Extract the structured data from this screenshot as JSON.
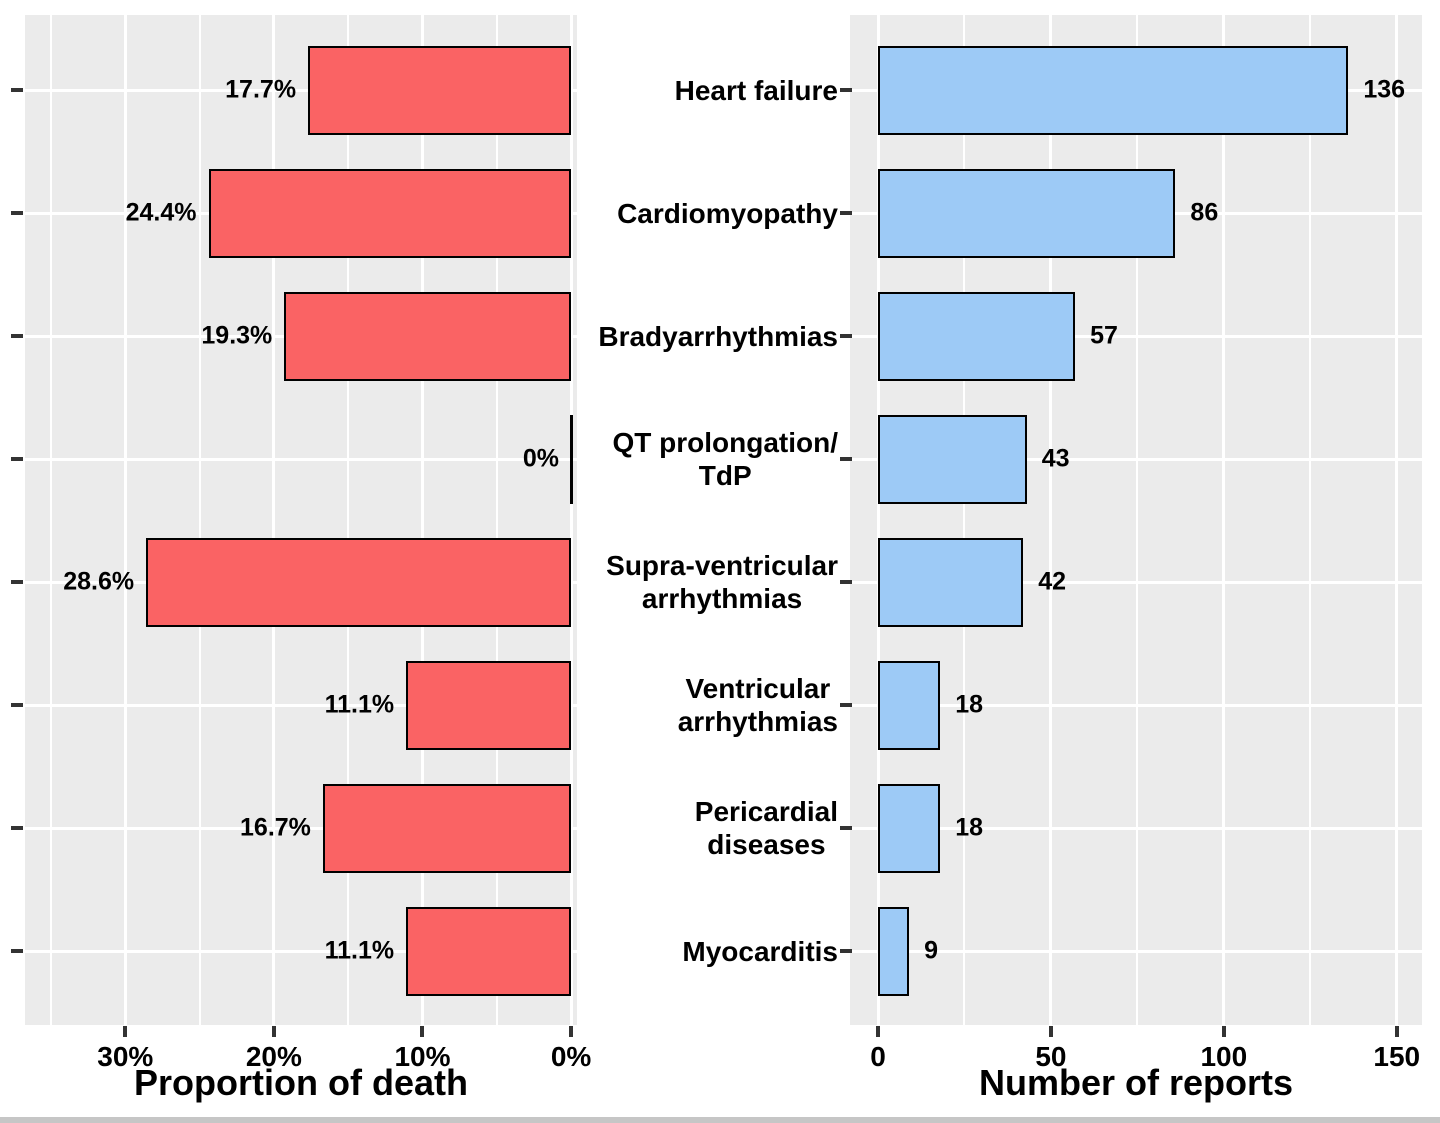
{
  "chart_data": {
    "type": "bar",
    "orientation": "horizontal",
    "layout": "two back-to-back horizontal bar panels sharing a centered category axis",
    "categories": [
      "Heart failure",
      "Cardiomyopathy",
      "Bradyarrhythmias",
      "QT prolongation/\nTdP",
      "Supra-ventricular\narrhythmias",
      "Ventricular\narrhythmias",
      "Pericardial\ndiseases",
      "Myocarditis"
    ],
    "panels": [
      {
        "name": "proportion-of-death",
        "xlabel": "Proportion of death",
        "bar_color": "#FA6364",
        "values": [
          17.7,
          24.4,
          19.3,
          0,
          28.6,
          11.1,
          16.7,
          11.1
        ],
        "value_labels": [
          "17.7%",
          "24.4%",
          "19.3%",
          "0%",
          "28.6%",
          "11.1%",
          "16.7%",
          "11.1%"
        ],
        "value_label_side": "left",
        "x_tick_labels": [
          "30%",
          "20%",
          "10%",
          "0%"
        ],
        "x_tick_values": [
          30,
          20,
          10,
          0
        ],
        "x_minor_tick_values": [
          35,
          25,
          15,
          5
        ],
        "x_axis_reversed": true,
        "x_range": [
          36.75,
          -0.4
        ]
      },
      {
        "name": "number-of-reports",
        "xlabel": "Number of reports",
        "bar_color": "#9DCAF6",
        "values": [
          136,
          86,
          57,
          43,
          42,
          18,
          18,
          9
        ],
        "value_labels": [
          "136",
          "86",
          "57",
          "43",
          "42",
          "18",
          "18",
          "9"
        ],
        "value_label_side": "right",
        "x_tick_labels": [
          "0",
          "50",
          "100",
          "150"
        ],
        "x_tick_values": [
          0,
          50,
          100,
          150
        ],
        "x_minor_tick_values": [
          25,
          75,
          125
        ],
        "x_axis_reversed": false,
        "x_range": [
          -8.1,
          157.3
        ]
      }
    ],
    "styles": {
      "figure_background": "#FFFFFF",
      "panel_background": "#EBEBEB",
      "grid_color": "#FFFFFF",
      "bar_outline": "#000000",
      "tick_color": "#333333",
      "text_color": "#000000"
    },
    "grid": true,
    "legend": "none"
  }
}
